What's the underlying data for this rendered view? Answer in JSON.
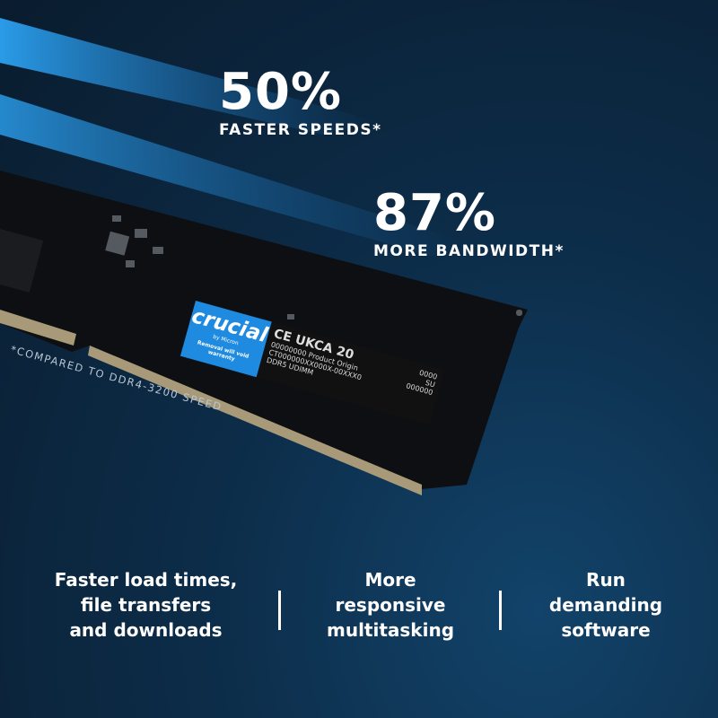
{
  "stats": [
    {
      "value": "50%",
      "label": "FASTER SPEEDS*"
    },
    {
      "value": "87%",
      "label": "MORE BANDWIDTH*"
    }
  ],
  "footnote": "*COMPARED TO DDR4-3200 SPEED",
  "product_label": {
    "brand": "crucial",
    "by": "by Micron",
    "warning": "Removal will void warranty",
    "marks": "CE UKCA 20",
    "line1": "00000000   Product Origin",
    "line2": "CT000000XX000X-00XXX0",
    "line3": "DDR5 UDIMM",
    "code1": "0000",
    "code2": "SU",
    "code3": "000000"
  },
  "features": [
    {
      "lines": [
        "Faster load times,",
        "file transfers",
        "and downloads"
      ]
    },
    {
      "lines": [
        "More",
        "responsive",
        "multitasking"
      ]
    },
    {
      "lines": [
        "Run",
        "demanding",
        "software"
      ]
    }
  ],
  "colors": {
    "accent": "#1e8ae0",
    "background": "#0c2c48"
  }
}
